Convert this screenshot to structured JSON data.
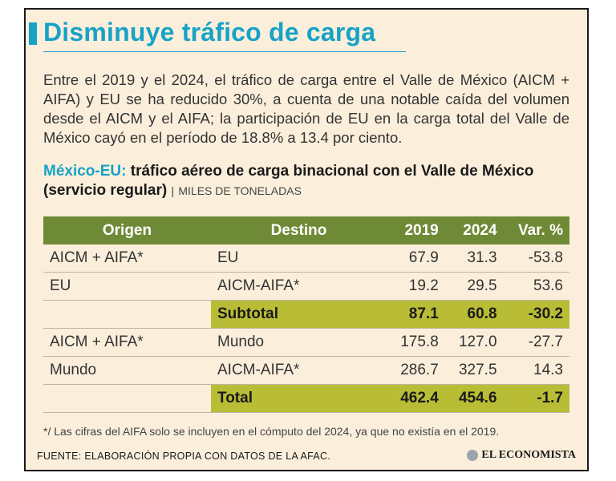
{
  "header": {
    "title": "Disminuye tráfico de carga",
    "accent_color": "#17a2c7"
  },
  "intro": "Entre el 2019 y el 2024, el tráfico de carga entre el Valle de México (AICM + AIFA) y EU se ha reducido 30%, a cuenta de una notable caída del volumen desde el AICM y el AIFA; la participación de EU en la carga total del Valle de México cayó en el período de 18.8% a 13.4 por ciento.",
  "subtitle": {
    "prefix": "México-EU:",
    "main": "tráfico aéreo de carga binacional con el Valle de México (servicio regular)",
    "separator": "|",
    "unit": "MILES DE TONELADAS"
  },
  "table": {
    "header_color": "#6f8a36",
    "highlight_color": "#b9bd35",
    "columns": [
      "Origen",
      "Destino",
      "2019",
      "2024",
      "Var. %"
    ],
    "rows": [
      {
        "origen": "AICM + AIFA*",
        "destino": "EU",
        "y2019": "67.9",
        "y2024": "31.3",
        "var": "-53.8",
        "highlight": false
      },
      {
        "origen": "EU",
        "destino": "AICM-AIFA*",
        "y2019": "19.2",
        "y2024": "29.5",
        "var": "53.6",
        "highlight": false
      },
      {
        "origen": "",
        "destino": "Subtotal",
        "y2019": "87.1",
        "y2024": "60.8",
        "var": "-30.2",
        "highlight": true
      },
      {
        "origen": "AICM + AIFA*",
        "destino": "Mundo",
        "y2019": "175.8",
        "y2024": "127.0",
        "var": "-27.7",
        "highlight": false
      },
      {
        "origen": "Mundo",
        "destino": "AICM-AIFA*",
        "y2019": "286.7",
        "y2024": "327.5",
        "var": "14.3",
        "highlight": false
      },
      {
        "origen": "",
        "destino": "Total",
        "y2019": "462.4",
        "y2024": "454.6",
        "var": "-1.7",
        "highlight": true
      }
    ]
  },
  "footnote": "*/ Las cifras del AIFA solo se incluyen en el cómputo del 2024, ya que no existía en el 2019.",
  "source": "FUENTE: ELABORACIÓN PROPIA CON DATOS DE LA AFAC.",
  "brand": {
    "name": "EL ECONOMISTA",
    "icon": "globe-icon"
  }
}
